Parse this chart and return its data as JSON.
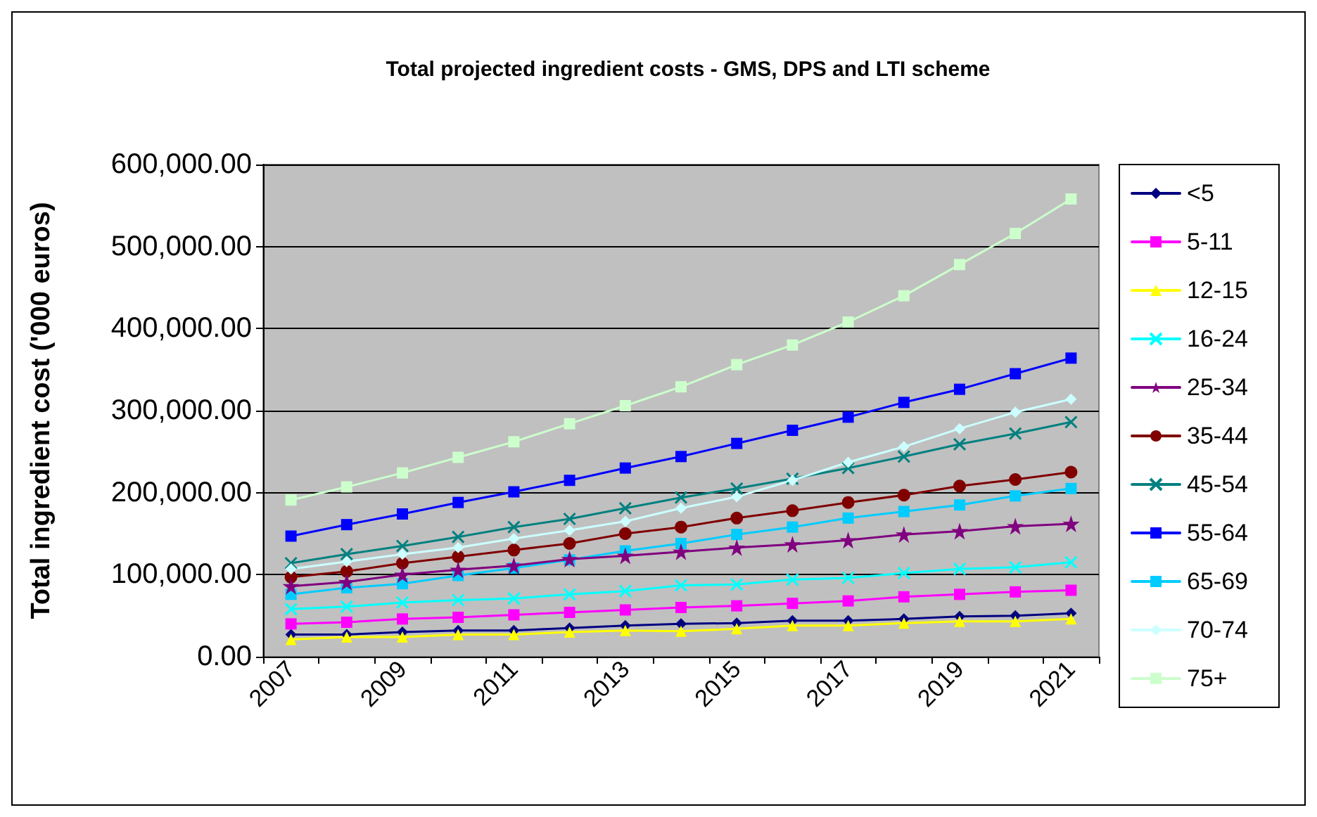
{
  "chart_data": {
    "type": "line",
    "title": "Total projected ingredient costs - GMS, DPS and LTI scheme",
    "ylabel": "Total ingredient cost ('000 euros)",
    "categories": [
      "2007",
      null,
      "2009",
      null,
      "2011",
      null,
      "2013",
      null,
      "2015",
      null,
      "2017",
      null,
      "2019",
      null,
      "2021"
    ],
    "ylim": [
      0,
      600000
    ],
    "yticks": [
      {
        "value": 0,
        "label": "0.00"
      },
      {
        "value": 100000,
        "label": "100,000.00"
      },
      {
        "value": 200000,
        "label": "200,000.00"
      },
      {
        "value": 300000,
        "label": "300,000.00"
      },
      {
        "value": 400000,
        "label": "400,000.00"
      },
      {
        "value": 500000,
        "label": "500,000.00"
      },
      {
        "value": 600000,
        "label": "600,000.00"
      }
    ],
    "grid": "y",
    "legend": "right",
    "series": [
      {
        "name": "<5",
        "color": "#000080",
        "marker": "diamond",
        "values": [
          27000,
          27000,
          30000,
          32000,
          32000,
          35000,
          38000,
          40000,
          41000,
          44000,
          44000,
          46000,
          49000,
          50000,
          53000
        ]
      },
      {
        "name": "5-11",
        "color": "#ff00ff",
        "marker": "square",
        "values": [
          40000,
          42000,
          46000,
          48000,
          51000,
          54000,
          57000,
          60000,
          62000,
          65000,
          68000,
          73000,
          76000,
          79000,
          81000
        ]
      },
      {
        "name": "12-15",
        "color": "#ffff00",
        "marker": "triangle",
        "values": [
          21000,
          24000,
          24000,
          27000,
          27000,
          30000,
          32000,
          31000,
          34000,
          38000,
          38000,
          41000,
          43000,
          43000,
          46000
        ]
      },
      {
        "name": "16-24",
        "color": "#00ffff",
        "marker": "cross",
        "values": [
          58000,
          61000,
          66000,
          69000,
          71000,
          76000,
          80000,
          87000,
          88000,
          94000,
          96000,
          102000,
          107000,
          109000,
          115000
        ]
      },
      {
        "name": "25-34",
        "color": "#800080",
        "marker": "star",
        "values": [
          86000,
          91000,
          100000,
          106000,
          111000,
          119000,
          123000,
          128000,
          133000,
          137000,
          142000,
          149000,
          153000,
          159000,
          162000
        ]
      },
      {
        "name": "35-44",
        "color": "#800000",
        "marker": "circle",
        "values": [
          97000,
          104000,
          114000,
          122000,
          130000,
          138000,
          150000,
          158000,
          169000,
          178000,
          188000,
          197000,
          208000,
          216000,
          225000
        ]
      },
      {
        "name": "45-54",
        "color": "#008080",
        "marker": "cross",
        "values": [
          114000,
          125000,
          135000,
          146000,
          158000,
          168000,
          181000,
          194000,
          205000,
          217000,
          230000,
          244000,
          259000,
          272000,
          286000
        ]
      },
      {
        "name": "55-64",
        "color": "#0000ff",
        "marker": "square",
        "values": [
          147000,
          161000,
          174000,
          188000,
          201000,
          215000,
          230000,
          244000,
          260000,
          276000,
          292000,
          310000,
          326000,
          345000,
          364000
        ]
      },
      {
        "name": "65-69",
        "color": "#00ccff",
        "marker": "square",
        "values": [
          76000,
          84000,
          89000,
          99000,
          108000,
          118000,
          129000,
          138000,
          149000,
          158000,
          169000,
          177000,
          185000,
          196000,
          205000
        ]
      },
      {
        "name": "70-74",
        "color": "#ccffff",
        "marker": "diamond",
        "values": [
          107000,
          116000,
          125000,
          133000,
          144000,
          154000,
          165000,
          181000,
          195000,
          215000,
          237000,
          256000,
          278000,
          298000,
          314000
        ]
      },
      {
        "name": "75+",
        "color": "#ccffcc",
        "marker": "square",
        "values": [
          191000,
          207000,
          224000,
          243000,
          262000,
          284000,
          306000,
          329000,
          356000,
          380000,
          408000,
          440000,
          478000,
          516000,
          558000
        ]
      }
    ]
  }
}
